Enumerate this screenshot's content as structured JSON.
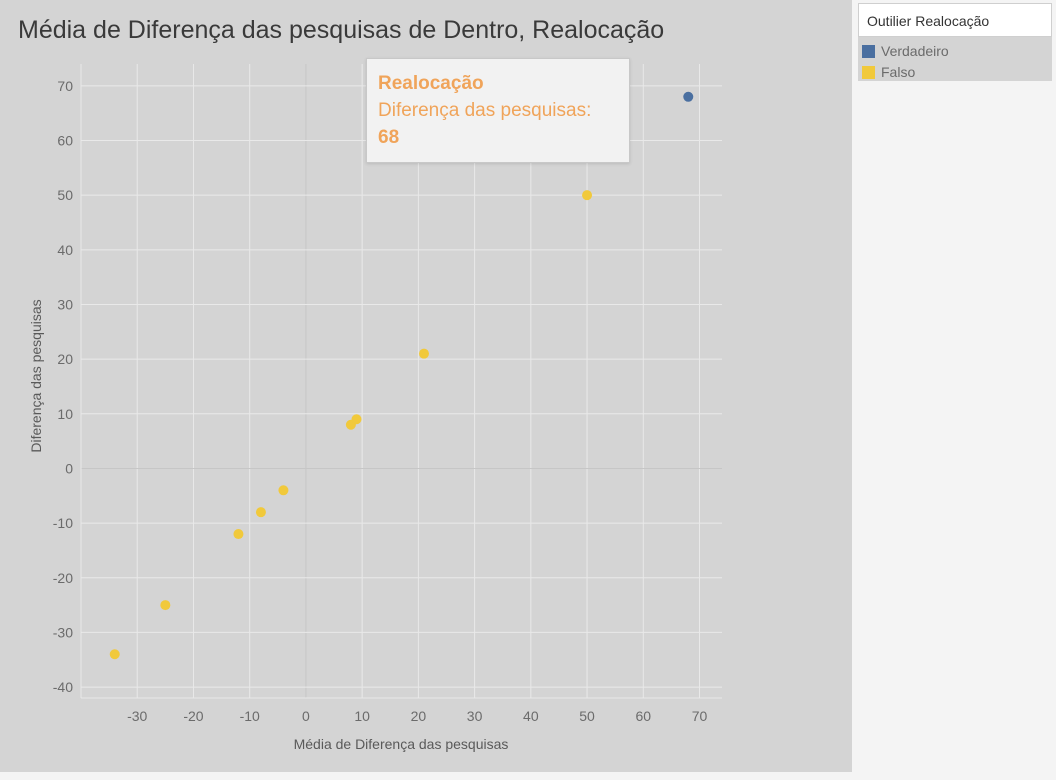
{
  "colors": {
    "true_series": "#4a6fa0",
    "false_series": "#f1c93b",
    "tooltip_text": "#f0a45a"
  },
  "tooltip": {
    "title": "Realocação",
    "label": "Diferença das pesquisas:",
    "value": "68"
  },
  "legend": {
    "title": "Outilier Realocação",
    "items": [
      {
        "label": "Verdadeiro",
        "color": "#4a6fa0"
      },
      {
        "label": "Falso",
        "color": "#f1c93b"
      }
    ]
  },
  "chart_data": {
    "type": "scatter",
    "title": "Média de Diferença das pesquisas de Dentro, Realocação",
    "xlabel": "Média de Diferença das pesquisas",
    "ylabel": "Diferença das pesquisas",
    "xlim": [
      -40,
      74
    ],
    "ylim": [
      -42,
      74
    ],
    "xticks": [
      -30,
      -20,
      -10,
      0,
      10,
      20,
      30,
      40,
      50,
      60,
      70
    ],
    "yticks": [
      -40,
      -30,
      -20,
      -10,
      0,
      10,
      20,
      30,
      40,
      50,
      60,
      70
    ],
    "grid": true,
    "legend_position": "right",
    "series": [
      {
        "name": "Verdadeiro",
        "color": "#4a6fa0",
        "points": [
          {
            "x": 68,
            "y": 68
          }
        ]
      },
      {
        "name": "Falso",
        "color": "#f1c93b",
        "points": [
          {
            "x": -34,
            "y": -34
          },
          {
            "x": -25,
            "y": -25
          },
          {
            "x": -12,
            "y": -12
          },
          {
            "x": -8,
            "y": -8
          },
          {
            "x": -4,
            "y": -4
          },
          {
            "x": 8,
            "y": 8
          },
          {
            "x": 9,
            "y": 9
          },
          {
            "x": 21,
            "y": 21
          },
          {
            "x": 50,
            "y": 50
          }
        ]
      }
    ]
  }
}
